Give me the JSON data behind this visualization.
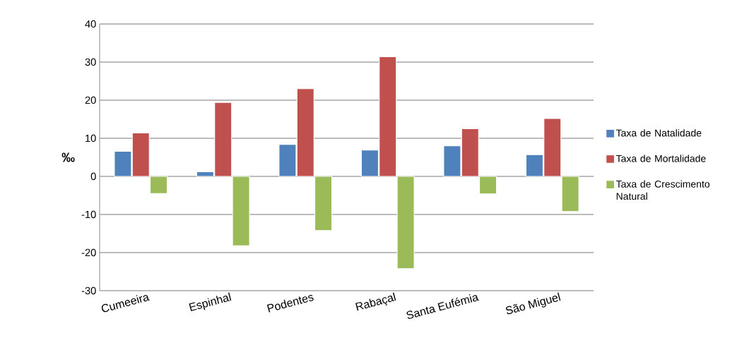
{
  "chart_data": {
    "type": "bar",
    "ylabel": "‰",
    "categories": [
      "Cumeeira",
      "Espinhal",
      "Podentes",
      "Rabaçal",
      "Santa Eufémia",
      "São Miguel"
    ],
    "series": [
      {
        "name": "Taxa de Natalidade",
        "color": "#4f81bd",
        "values": [
          6.6,
          1.2,
          8.4,
          6.9,
          8.0,
          5.7
        ]
      },
      {
        "name": "Taxa de Mortalidade",
        "color": "#c0504d",
        "values": [
          11.4,
          19.4,
          23.0,
          31.4,
          12.5,
          15.2
        ]
      },
      {
        "name": "Taxa de Crescimento Natural",
        "color": "#9bbb59",
        "values": [
          -4.5,
          -18.2,
          -14.2,
          -24.2,
          -4.6,
          -9.2
        ]
      }
    ],
    "ylim": [
      -30,
      40
    ],
    "yticks": [
      -30,
      -20,
      -10,
      0,
      10,
      20,
      30,
      40
    ],
    "grid": "y",
    "legend": "right"
  }
}
